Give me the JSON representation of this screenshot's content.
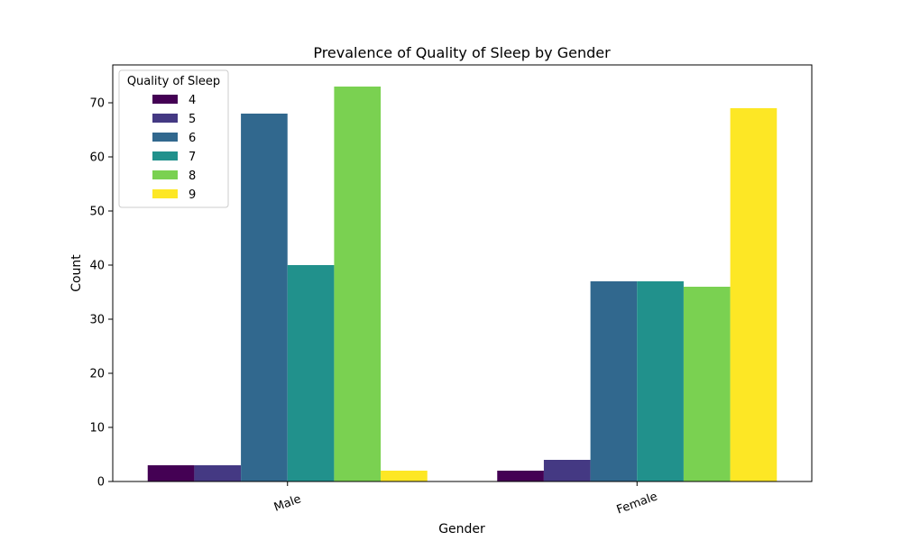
{
  "chart_data": {
    "type": "bar",
    "title": "Prevalence of Quality of Sleep by Gender",
    "xlabel": "Gender",
    "ylabel": "Count",
    "categories": [
      "Male",
      "Female"
    ],
    "ylim": [
      0,
      77
    ],
    "yticks": [
      0,
      10,
      20,
      30,
      40,
      50,
      60,
      70
    ],
    "grid": false,
    "legend": {
      "title": "Quality of Sleep",
      "placement": "top-left"
    },
    "series": [
      {
        "name": "4",
        "color": "#440154",
        "values": [
          3,
          2
        ]
      },
      {
        "name": "5",
        "color": "#443983",
        "values": [
          3,
          4
        ]
      },
      {
        "name": "6",
        "color": "#31688e",
        "values": [
          68,
          37
        ]
      },
      {
        "name": "7",
        "color": "#21918c",
        "values": [
          40,
          37
        ]
      },
      {
        "name": "8",
        "color": "#7ad151",
        "values": [
          73,
          36
        ]
      },
      {
        "name": "9",
        "color": "#fde725",
        "values": [
          2,
          69
        ]
      }
    ]
  }
}
